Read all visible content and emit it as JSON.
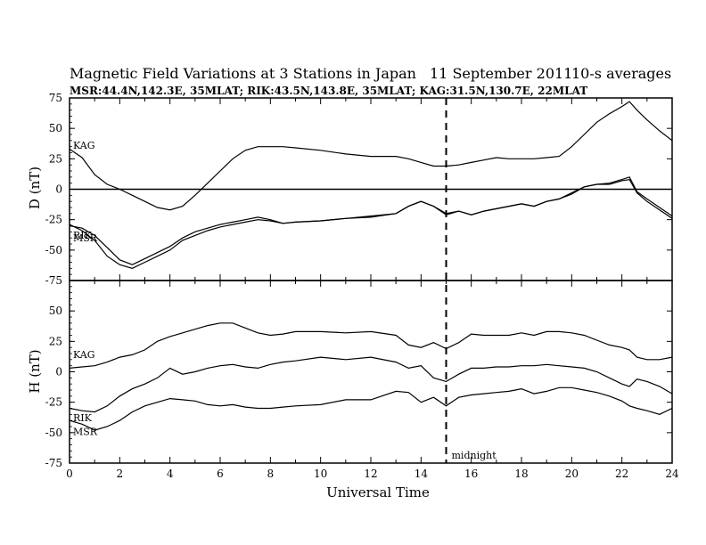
{
  "header": {
    "title": "Magnetic Field Variations at 3 Stations in Japan",
    "date": "11 September 2011",
    "averaging": "10-s averages",
    "stations_line": "MSR:44.4N,142.3E, 35MLAT;  RIK:43.5N,143.8E, 35MLAT;  KAG:31.5N,130.7E, 22MLAT"
  },
  "chart_data": [
    {
      "type": "line",
      "ylabel": "D (nT)",
      "ylim": [
        -75,
        75
      ],
      "yticks": [
        -75,
        -50,
        -25,
        0,
        25,
        50,
        75
      ],
      "xlim": [
        0,
        24
      ],
      "zero_line": true,
      "series": [
        {
          "name": "KAG",
          "x": [
            0,
            0.5,
            1,
            1.5,
            2,
            2.5,
            3,
            3.5,
            4,
            4.5,
            5,
            5.5,
            6,
            6.5,
            7,
            7.5,
            8,
            8.5,
            9,
            10,
            11,
            12,
            13,
            13.5,
            14,
            14.5,
            15,
            15.5,
            16,
            16.5,
            17,
            17.5,
            18,
            18.5,
            19,
            19.5,
            20,
            20.5,
            21,
            21.5,
            22,
            22.3,
            22.6,
            23,
            23.5,
            24
          ],
          "y": [
            33,
            26,
            12,
            4,
            0,
            -5,
            -10,
            -15,
            -17,
            -14,
            -5,
            5,
            15,
            25,
            32,
            35,
            35,
            35,
            34,
            32,
            29,
            27,
            27,
            25,
            22,
            19,
            19,
            20,
            22,
            24,
            26,
            25,
            25,
            25,
            26,
            27,
            35,
            45,
            55,
            62,
            68,
            72,
            65,
            57,
            48,
            40
          ]
        },
        {
          "name": "RIK",
          "x": [
            0,
            0.5,
            1,
            1.5,
            2,
            2.5,
            3,
            3.5,
            4,
            4.5,
            5,
            5.5,
            6,
            6.5,
            7,
            7.5,
            8,
            8.5,
            9,
            10,
            11,
            12,
            13,
            13.5,
            14,
            14.5,
            15,
            15.5,
            16,
            16.5,
            17,
            17.5,
            18,
            18.5,
            19,
            19.5,
            20,
            20.5,
            21,
            21.5,
            22,
            22.3,
            22.6,
            23,
            23.5,
            24
          ],
          "y": [
            -30,
            -32,
            -38,
            -48,
            -58,
            -62,
            -57,
            -52,
            -47,
            -40,
            -35,
            -32,
            -29,
            -27,
            -25,
            -23,
            -25,
            -28,
            -27,
            -26,
            -24,
            -23,
            -20,
            -14,
            -10,
            -14,
            -20,
            -18,
            -21,
            -18,
            -16,
            -14,
            -12,
            -14,
            -10,
            -8,
            -4,
            2,
            4,
            5,
            8,
            10,
            -2,
            -8,
            -15,
            -22
          ]
        },
        {
          "name": "MSR",
          "x": [
            0,
            0.5,
            1,
            1.5,
            2,
            2.5,
            3,
            3.5,
            4,
            4.5,
            5,
            5.5,
            6,
            6.5,
            7,
            7.5,
            8,
            8.5,
            9,
            10,
            11,
            12,
            13,
            13.5,
            14,
            14.5,
            15,
            15.5,
            16,
            16.5,
            17,
            17.5,
            18,
            18.5,
            19,
            19.5,
            20,
            20.5,
            21,
            21.5,
            22,
            22.3,
            22.6,
            23,
            23.5,
            24
          ],
          "y": [
            -29,
            -34,
            -42,
            -55,
            -62,
            -65,
            -60,
            -55,
            -50,
            -42,
            -38,
            -34,
            -31,
            -29,
            -27,
            -25,
            -26,
            -28,
            -27,
            -26,
            -24,
            -22,
            -20,
            -14,
            -10,
            -14,
            -21,
            -18,
            -21,
            -18,
            -16,
            -14,
            -12,
            -14,
            -10,
            -8,
            -3,
            2,
            4,
            4,
            7,
            8,
            -3,
            -10,
            -17,
            -24
          ]
        }
      ]
    },
    {
      "type": "line",
      "ylabel": "H (nT)",
      "ylim": [
        -75,
        75
      ],
      "yticks": [
        -75,
        -50,
        -25,
        0,
        25,
        50
      ],
      "xlim": [
        0,
        24
      ],
      "xticks": [
        0,
        2,
        4,
        6,
        8,
        10,
        12,
        14,
        16,
        18,
        20,
        22,
        24
      ],
      "xlabel": "Universal Time",
      "midnight_marker": {
        "x": 15,
        "label": "midnight"
      },
      "series": [
        {
          "name": "KAG",
          "x": [
            0,
            0.5,
            1,
            1.5,
            2,
            2.5,
            3,
            3.5,
            4,
            4.5,
            5,
            5.5,
            6,
            6.5,
            7,
            7.5,
            8,
            8.5,
            9,
            10,
            11,
            12,
            13,
            13.5,
            14,
            14.5,
            15,
            15.5,
            16,
            16.5,
            17,
            17.5,
            18,
            18.5,
            19,
            19.5,
            20,
            20.5,
            21,
            21.5,
            22,
            22.3,
            22.6,
            23,
            23.5,
            24
          ],
          "y": [
            3,
            4,
            5,
            8,
            12,
            14,
            18,
            25,
            29,
            32,
            35,
            38,
            40,
            40,
            36,
            32,
            30,
            31,
            33,
            33,
            32,
            33,
            30,
            22,
            20,
            24,
            19,
            24,
            31,
            30,
            30,
            30,
            32,
            30,
            33,
            33,
            32,
            30,
            26,
            22,
            20,
            18,
            12,
            10,
            10,
            12
          ]
        },
        {
          "name": "RIK",
          "x": [
            0,
            0.5,
            1,
            1.5,
            2,
            2.5,
            3,
            3.5,
            4,
            4.5,
            5,
            5.5,
            6,
            6.5,
            7,
            7.5,
            8,
            8.5,
            9,
            10,
            11,
            12,
            13,
            13.5,
            14,
            14.5,
            15,
            15.5,
            16,
            16.5,
            17,
            17.5,
            18,
            18.5,
            19,
            19.5,
            20,
            20.5,
            21,
            21.5,
            22,
            22.3,
            22.6,
            23,
            23.5,
            24
          ],
          "y": [
            -30,
            -32,
            -33,
            -28,
            -20,
            -14,
            -10,
            -5,
            3,
            -2,
            0,
            3,
            5,
            6,
            4,
            3,
            6,
            8,
            9,
            12,
            10,
            12,
            8,
            3,
            5,
            -5,
            -8,
            -2,
            3,
            3,
            4,
            4,
            5,
            5,
            6,
            5,
            4,
            3,
            0,
            -5,
            -10,
            -12,
            -6,
            -8,
            -12,
            -18
          ]
        },
        {
          "name": "MSR",
          "x": [
            0,
            0.5,
            1,
            1.5,
            2,
            2.5,
            3,
            3.5,
            4,
            4.5,
            5,
            5.5,
            6,
            6.5,
            7,
            7.5,
            8,
            8.5,
            9,
            10,
            11,
            12,
            13,
            13.5,
            14,
            14.5,
            15,
            15.5,
            16,
            16.5,
            17,
            17.5,
            18,
            18.5,
            19,
            19.5,
            20,
            20.5,
            21,
            21.5,
            22,
            22.3,
            22.6,
            23,
            23.5,
            24
          ],
          "y": [
            -40,
            -43,
            -48,
            -45,
            -40,
            -33,
            -28,
            -25,
            -22,
            -23,
            -24,
            -27,
            -28,
            -27,
            -29,
            -30,
            -30,
            -29,
            -28,
            -27,
            -23,
            -23,
            -16,
            -17,
            -25,
            -21,
            -28,
            -21,
            -19,
            -18,
            -17,
            -16,
            -14,
            -18,
            -16,
            -13,
            -13,
            -15,
            -17,
            -20,
            -24,
            -28,
            -30,
            -32,
            -35,
            -30
          ]
        }
      ]
    }
  ]
}
